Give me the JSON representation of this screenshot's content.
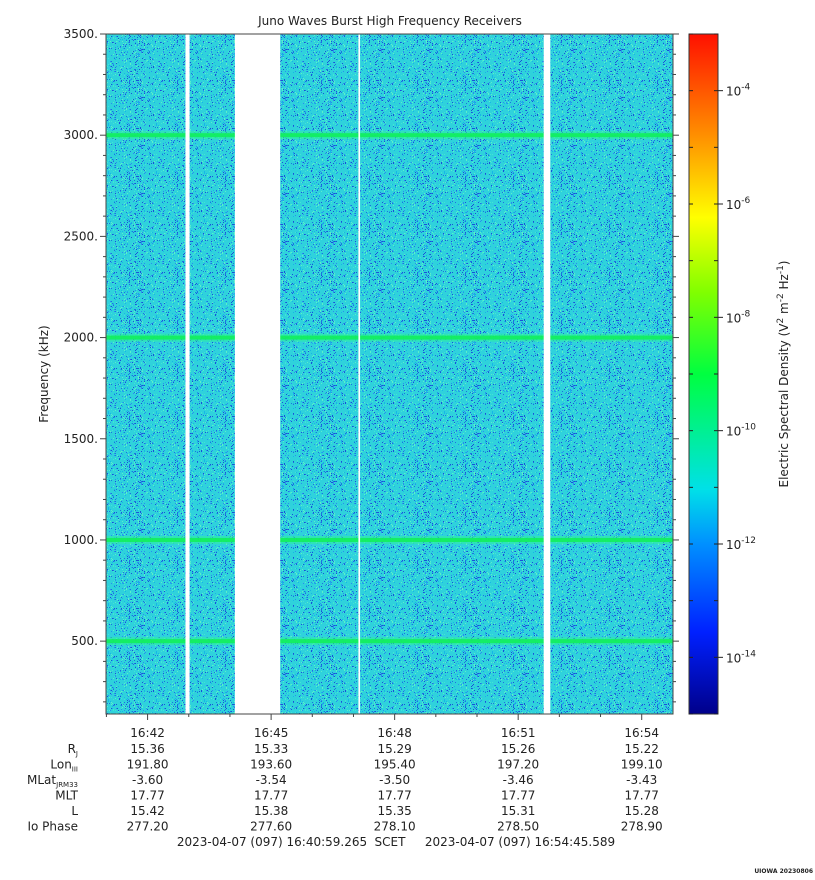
{
  "chart_data": {
    "type": "heatmap",
    "title": "Juno Waves Burst High Frequency Receivers",
    "ylabel": "Frequency (kHz)",
    "ylim": [
      140,
      3500
    ],
    "y_ticks": [
      {
        "value": 500,
        "label": "500."
      },
      {
        "value": 1000,
        "label": "1000."
      },
      {
        "value": 1500,
        "label": "1500."
      },
      {
        "value": 2000,
        "label": "2000."
      },
      {
        "value": 2500,
        "label": "2500."
      },
      {
        "value": 3000,
        "label": "3000."
      },
      {
        "value": 3500,
        "label": "3500."
      }
    ],
    "x_range_min": [
      40.99,
      54.76
    ],
    "x_ticks": [
      {
        "min": 42,
        "label": "16:42"
      },
      {
        "min": 45,
        "label": "16:45"
      },
      {
        "min": 48,
        "label": "16:48"
      },
      {
        "min": 51,
        "label": "16:51"
      },
      {
        "min": 54,
        "label": "16:54"
      }
    ],
    "ephemeris": [
      {
        "name": "R",
        "sub": "J",
        "values": [
          "15.36",
          "15.33",
          "15.29",
          "15.26",
          "15.22"
        ]
      },
      {
        "name": "Lon",
        "sub": "III",
        "values": [
          "191.80",
          "193.60",
          "195.40",
          "197.20",
          "199.10"
        ]
      },
      {
        "name": "MLat",
        "sub": "JRM33",
        "values": [
          "-3.60",
          "-3.54",
          "-3.50",
          "-3.46",
          "-3.43"
        ]
      },
      {
        "name": "MLT",
        "sub": "",
        "values": [
          "17.77",
          "17.77",
          "17.77",
          "17.77",
          "17.77"
        ]
      },
      {
        "name": "L",
        "sub": "",
        "values": [
          "15.42",
          "15.38",
          "15.35",
          "15.31",
          "15.28"
        ]
      },
      {
        "name": "Io Phase",
        "sub": "",
        "values": [
          "277.20",
          "277.60",
          "278.10",
          "278.50",
          "278.90"
        ]
      }
    ],
    "time_range": {
      "start": "2023-04-07 (097) 16:40:59.265",
      "label": "SCET",
      "end": "2023-04-07 (097) 16:54:45.589"
    },
    "data_gaps_min": [
      [
        42.92,
        43.02
      ],
      [
        44.12,
        45.22
      ],
      [
        47.12,
        47.16
      ],
      [
        51.62,
        51.78
      ]
    ],
    "emission_bands_khz": [
      500,
      1000,
      2000,
      3000
    ],
    "background_level": "1e-12",
    "colorbar": {
      "label_main": "Electric Spectral Density (V",
      "label_sup1": "2",
      "label_mid1": " m",
      "label_sup2": "-2",
      "label_mid2": " Hz",
      "label_sup3": "-1",
      "label_end": ")",
      "log_range": [
        -15,
        -3
      ],
      "ticks": [
        {
          "exp": -14,
          "base": "10",
          "sup": "-14"
        },
        {
          "exp": -12,
          "base": "10",
          "sup": "-12"
        },
        {
          "exp": -10,
          "base": "10",
          "sup": "-10"
        },
        {
          "exp": -8,
          "base": "10",
          "sup": "-8"
        },
        {
          "exp": -6,
          "base": "10",
          "sup": "-6"
        },
        {
          "exp": -4,
          "base": "10",
          "sup": "-4"
        }
      ]
    },
    "footer_stamp": "UIOWA 20230806",
    "grid": false
  }
}
